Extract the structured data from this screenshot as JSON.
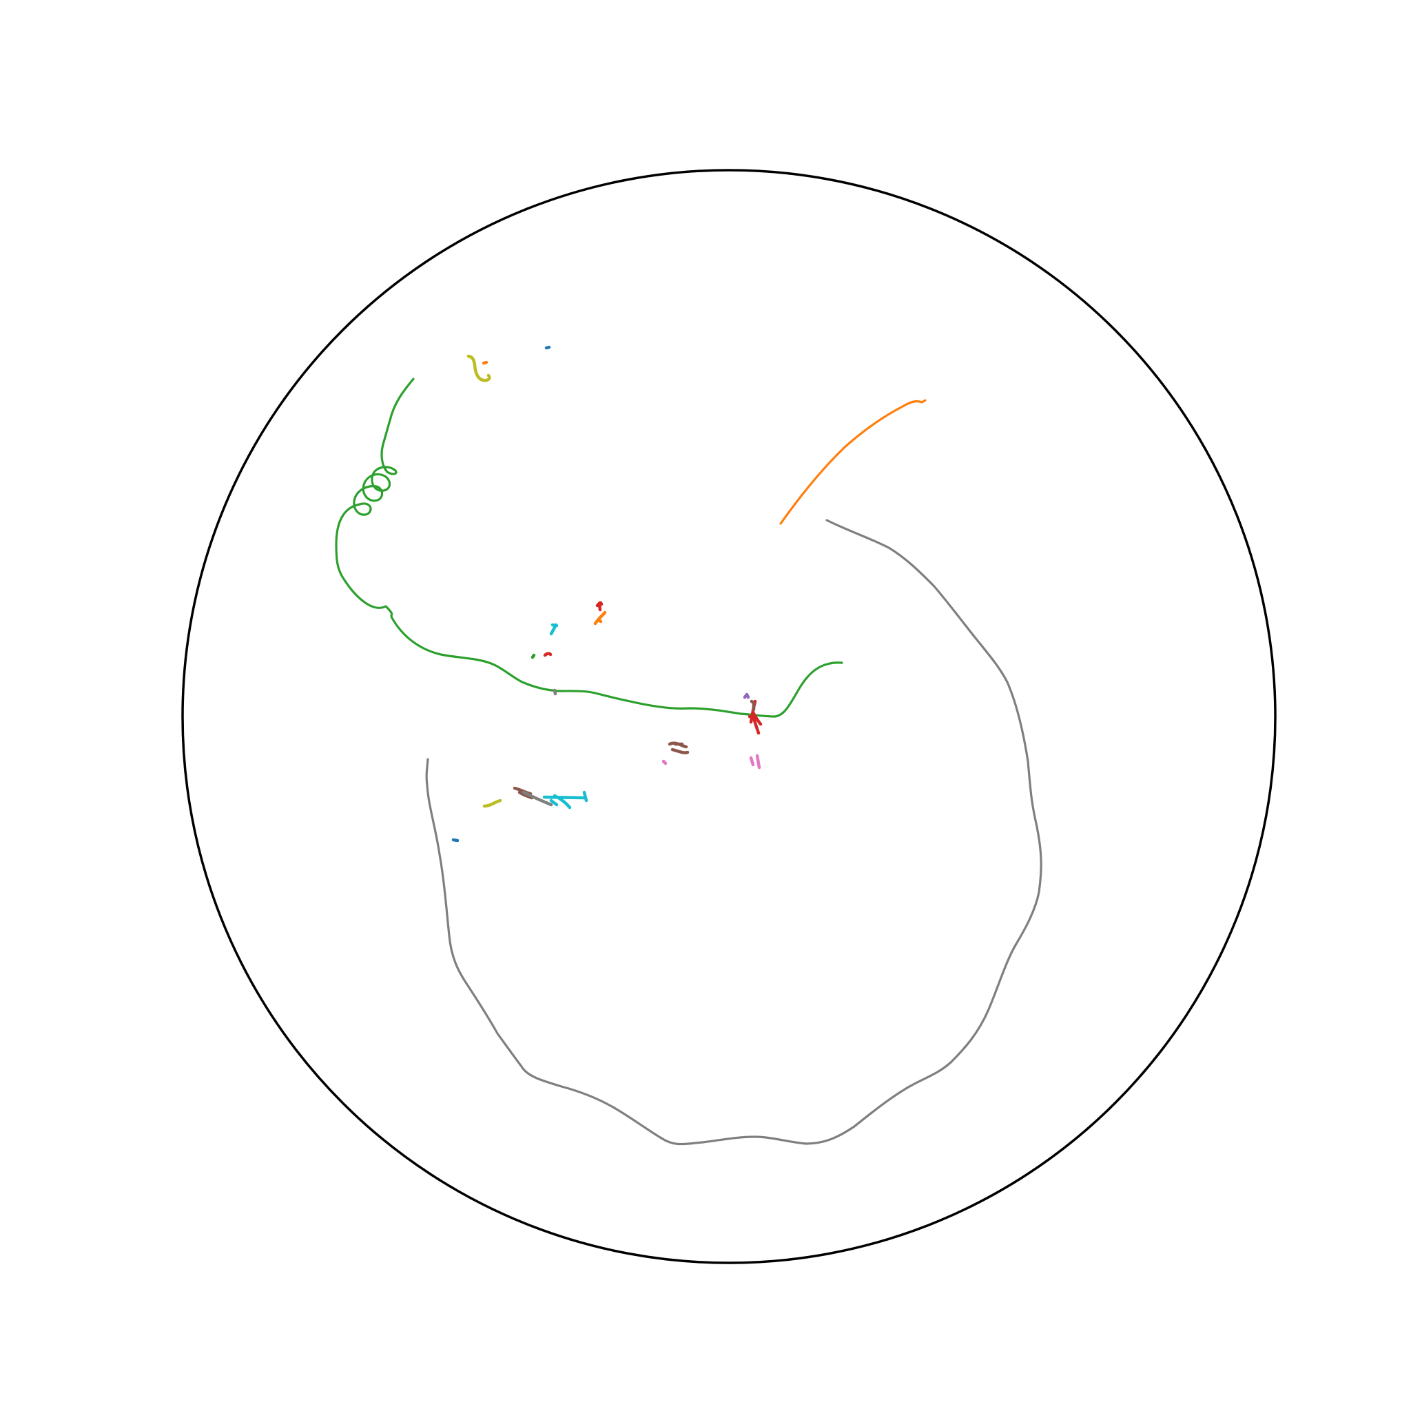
{
  "figure": {
    "background_color": "#ffffff",
    "boundary_color": "#000000",
    "boundary_shape": "circle"
  },
  "palette": {
    "blue": "#1f77b4",
    "orange": "#ff7f0e",
    "green": "#2ca02c",
    "red": "#d62728",
    "purple": "#9467bd",
    "brown": "#8c564b",
    "pink": "#e377c2",
    "gray": "#7f7f7f",
    "olive": "#bcbd22",
    "cyan": "#17becf"
  },
  "tracks": [
    {
      "id": "green-long",
      "color": "green"
    },
    {
      "id": "orange-long",
      "color": "orange"
    },
    {
      "id": "gray-long",
      "color": "gray"
    },
    {
      "id": "olive-top",
      "color": "olive"
    },
    {
      "id": "orange-dot-top",
      "color": "orange"
    },
    {
      "id": "blue-dot-top",
      "color": "blue"
    },
    {
      "id": "red-mid",
      "color": "red"
    },
    {
      "id": "orange-mid",
      "color": "orange"
    },
    {
      "id": "cyan-mid",
      "color": "cyan"
    },
    {
      "id": "red-small",
      "color": "red"
    },
    {
      "id": "green-small",
      "color": "green"
    },
    {
      "id": "gray-small",
      "color": "gray"
    },
    {
      "id": "purple-small",
      "color": "purple"
    },
    {
      "id": "red-cross",
      "color": "red"
    },
    {
      "id": "brown-cross",
      "color": "brown"
    },
    {
      "id": "brown-mid",
      "color": "brown"
    },
    {
      "id": "pink-left",
      "color": "pink"
    },
    {
      "id": "pink-right",
      "color": "pink"
    },
    {
      "id": "brown-low",
      "color": "brown"
    },
    {
      "id": "gray-low",
      "color": "gray"
    },
    {
      "id": "cyan-low",
      "color": "cyan"
    },
    {
      "id": "olive-low",
      "color": "olive"
    },
    {
      "id": "blue-low",
      "color": "blue"
    }
  ]
}
